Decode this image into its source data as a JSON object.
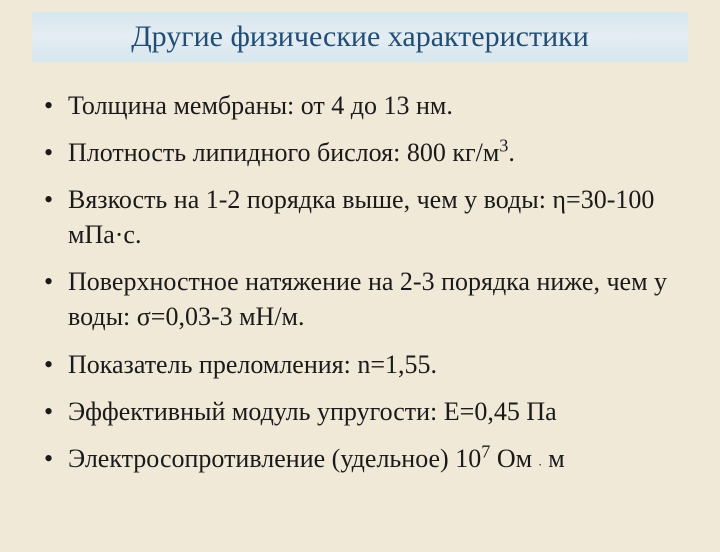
{
  "title": "Другие физические характеристики",
  "bullets": {
    "b0": {
      "text": "Толщина мембраны: от 4 до 13 нм."
    },
    "b1": {
      "pre": "Плотность липидного бислоя: 800 кг/м",
      "sup": "3",
      "post": "."
    },
    "b2": {
      "text": "Вязкость на 1-2 порядка выше, чем у воды: η=30-100 мПа·с."
    },
    "b3": {
      "text": "Поверхностное натяжение на 2-3 порядка ниже, чем у воды: σ=0,03-3 мН/м."
    },
    "b4": {
      "text": "Показатель преломления: n=1,55."
    },
    "b5": {
      "text": "Эффективный модуль упругости: E=0,45 Па"
    },
    "b6": {
      "pre": "Электросопротивление (удельное) 10",
      "sup": "7",
      "mid": " Ом ",
      "dot": ".",
      "post": " м"
    }
  },
  "colors": {
    "background": "#f0e9d8",
    "title_color": "#1f4e79",
    "text_color": "#1a1a1a",
    "title_bg_top": "#d7e6ee",
    "title_bg_mid": "#e4edf2"
  },
  "typography": {
    "title_fontsize": 30,
    "body_fontsize": 26,
    "font_family": "Times New Roman"
  }
}
